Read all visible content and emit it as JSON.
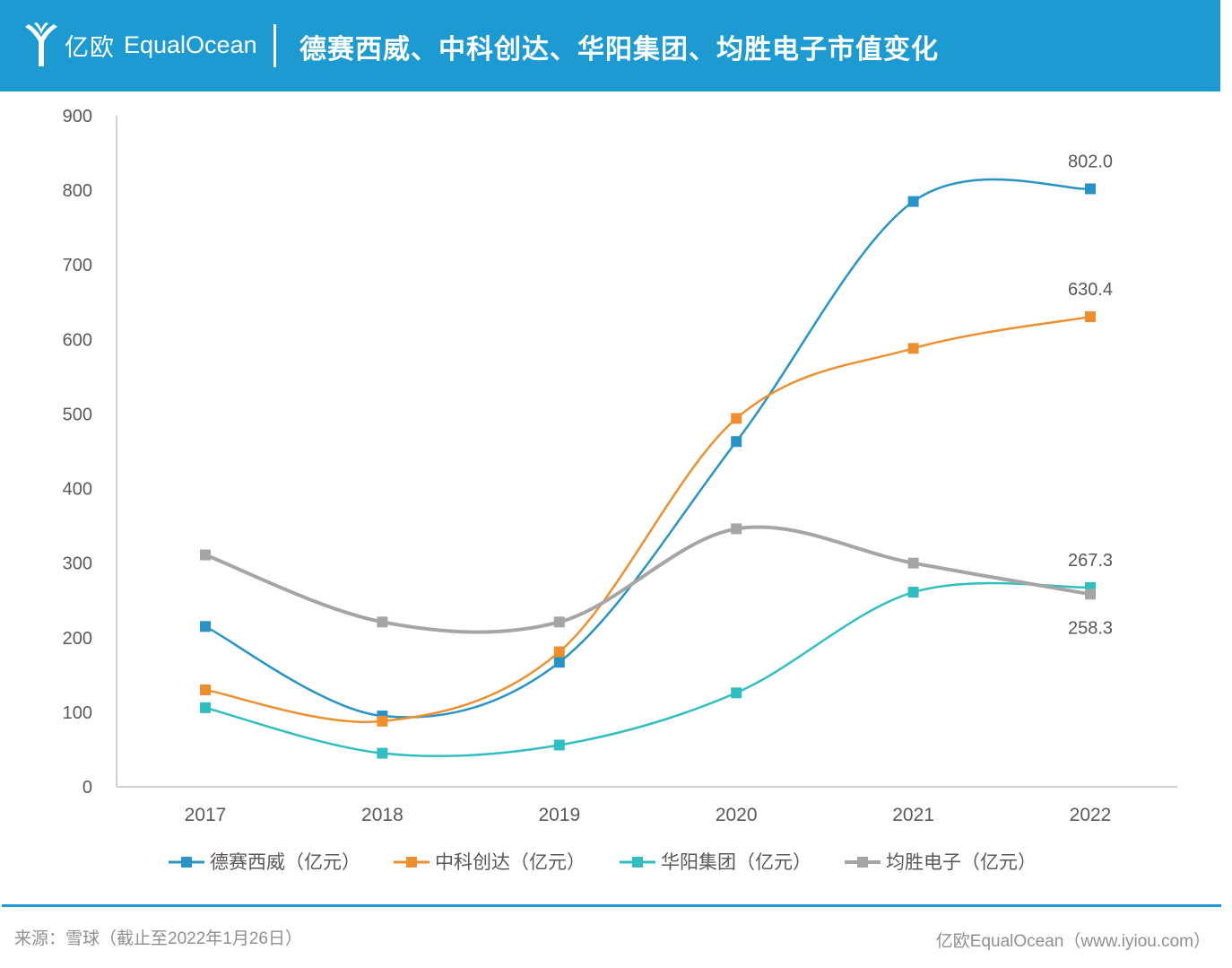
{
  "header": {
    "logo_cn": "亿欧",
    "logo_en": "EqualOcean",
    "title": "德赛西威、中科创达、华阳集团、均胜电子市值变化"
  },
  "chart_data": {
    "type": "line",
    "title": "德赛西威、中科创达、华阳集团、均胜电子市值变化",
    "categories": [
      "2017",
      "2018",
      "2019",
      "2020",
      "2021",
      "2022"
    ],
    "ylim": [
      0,
      900
    ],
    "yticks": [
      0,
      100,
      200,
      300,
      400,
      500,
      600,
      700,
      800,
      900
    ],
    "grid": false,
    "legend": "bottom",
    "series": [
      {
        "name": "德赛西威（亿元）",
        "color": "#2a93c6",
        "values": [
          215,
          95,
          167,
          463,
          785,
          802.0
        ],
        "end_label": "802.0"
      },
      {
        "name": "中科创达（亿元）",
        "color": "#ee8f2f",
        "values": [
          130,
          88,
          181,
          494,
          588,
          630.4
        ],
        "end_label": "630.4"
      },
      {
        "name": "华阳集团（亿元）",
        "color": "#32bec0",
        "values": [
          106,
          45,
          56,
          126,
          261,
          267.3
        ],
        "end_label": "267.3"
      },
      {
        "name": "均胜电子（亿元）",
        "color": "#a5a5a5",
        "values": [
          311,
          221,
          221,
          346,
          300,
          258.3
        ],
        "end_label": "258.3"
      }
    ]
  },
  "footer": {
    "source": "来源：雪球（截止至2022年1月26日）",
    "brand": "亿欧EqualOcean（www.iyiou.com）"
  }
}
